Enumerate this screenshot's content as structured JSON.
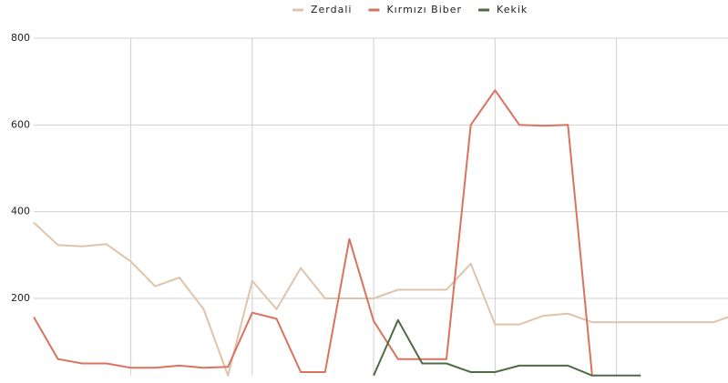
{
  "chart_data": {
    "type": "line",
    "categories": [
      null,
      null,
      null,
      null,
      null,
      null,
      null,
      null,
      null,
      null,
      null,
      null,
      null,
      null,
      null,
      null,
      null,
      null,
      null,
      null,
      null,
      null,
      null,
      null,
      null,
      null,
      null,
      null,
      null,
      null
    ],
    "series": [
      {
        "name": "Zerdali",
        "color": "#e0c4aa",
        "values": [
          375,
          323,
          320,
          325,
          285,
          228,
          248,
          175,
          22,
          240,
          175,
          270,
          200,
          200,
          200,
          220,
          220,
          220,
          280,
          140,
          140,
          160,
          165,
          145,
          145,
          145,
          145,
          145,
          145,
          165
        ]
      },
      {
        "name": "Kırmızı Biber",
        "color": "#d9735f",
        "values": [
          157,
          60,
          50,
          50,
          40,
          40,
          45,
          40,
          42,
          167,
          153,
          30,
          30,
          337,
          148,
          60,
          60,
          60,
          600,
          680,
          600,
          598,
          600,
          22,
          null,
          null,
          null,
          null,
          null,
          null
        ]
      },
      {
        "name": "Kekik",
        "color": "#4f6b45",
        "values": [
          null,
          null,
          null,
          null,
          null,
          null,
          null,
          null,
          null,
          null,
          null,
          null,
          null,
          null,
          22,
          150,
          50,
          50,
          30,
          30,
          45,
          45,
          45,
          22,
          22,
          22,
          null,
          null,
          null,
          null
        ]
      }
    ],
    "ylim": [
      22,
      800
    ],
    "yticks": [
      200,
      400,
      600,
      800
    ],
    "grid": true,
    "legend": "top"
  }
}
